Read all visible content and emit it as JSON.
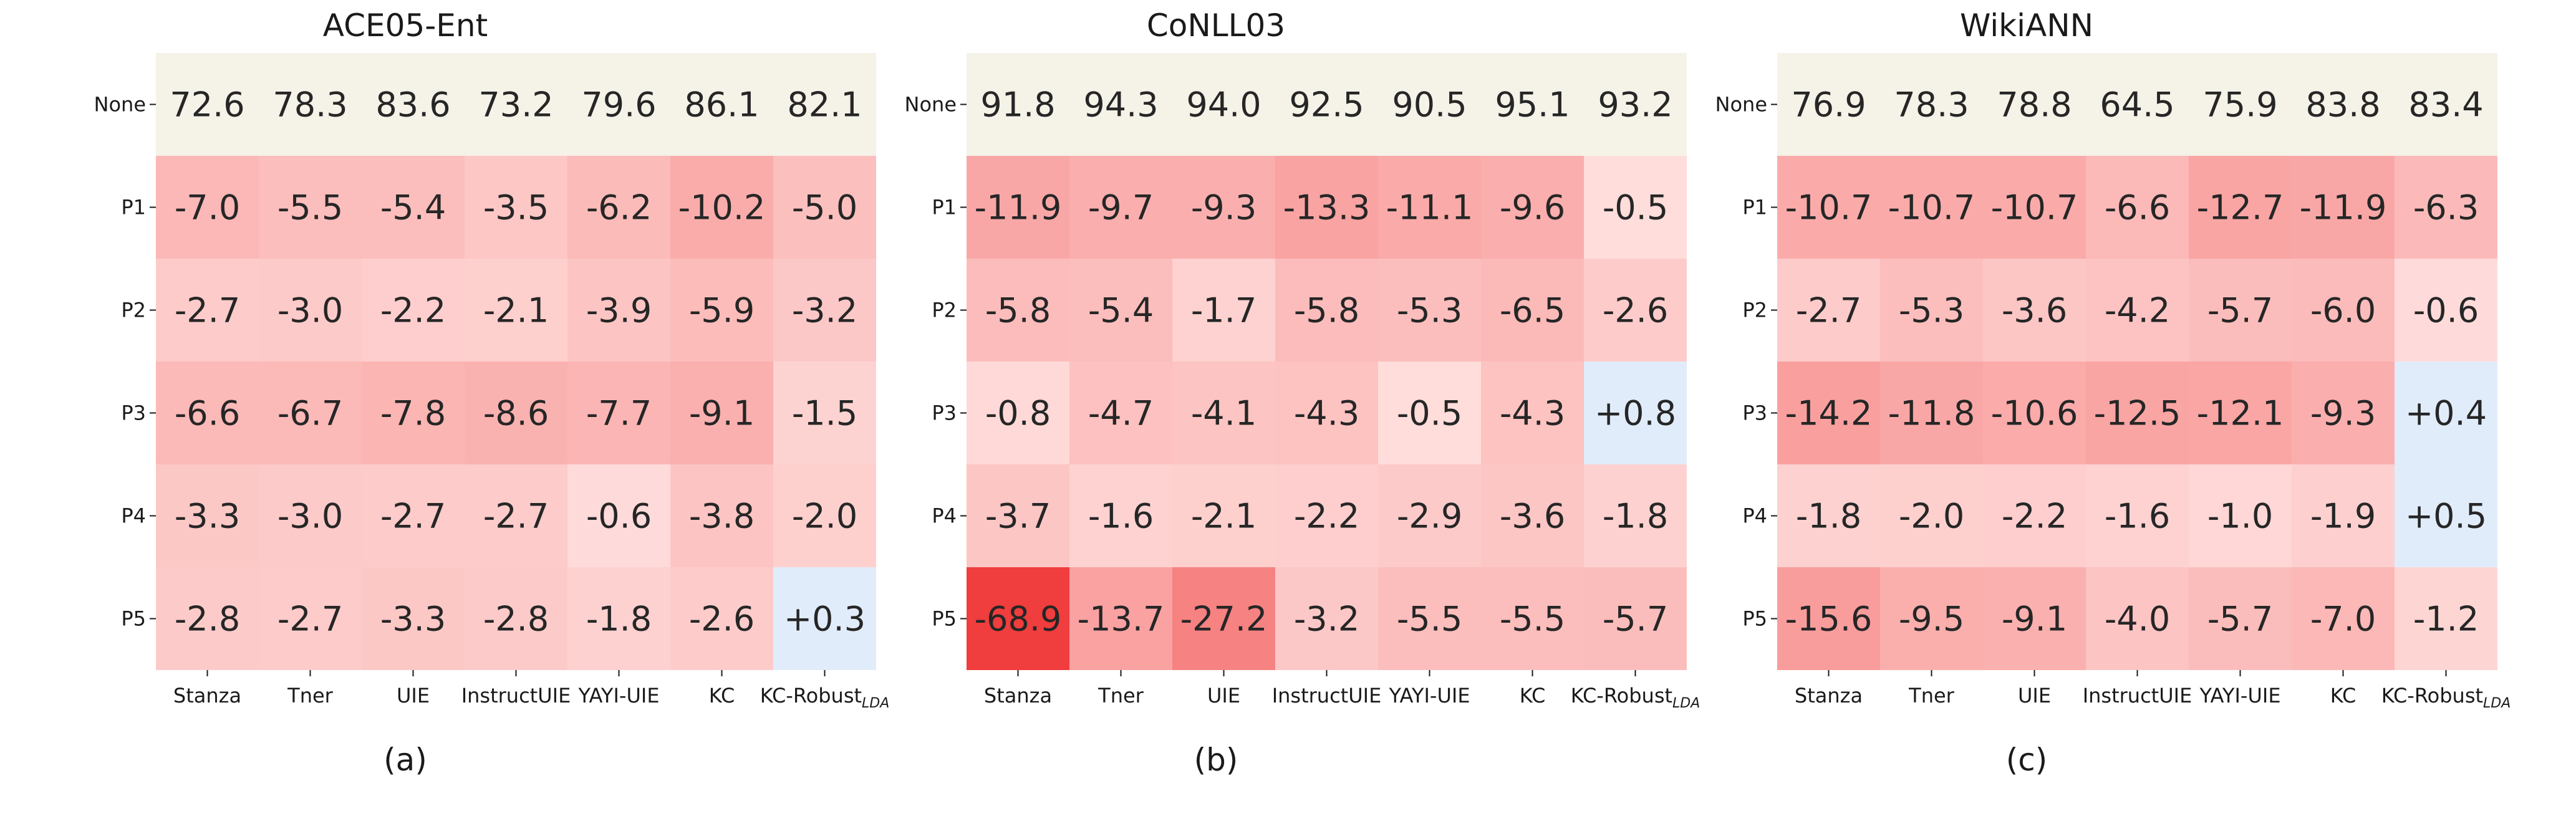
{
  "chart_data": [
    {
      "type": "heatmap",
      "title": "ACE05-Ent",
      "caption": "(a)",
      "rows": [
        "None",
        "P1",
        "P2",
        "P3",
        "P4",
        "P5"
      ],
      "columns": [
        {
          "main": "Stanza",
          "sub": ""
        },
        {
          "main": "Tner",
          "sub": ""
        },
        {
          "main": "UIE",
          "sub": ""
        },
        {
          "main": "InstructUIE",
          "sub": ""
        },
        {
          "main": "YAYI-UIE",
          "sub": ""
        },
        {
          "main": "KC",
          "sub": ""
        },
        {
          "main": "KC-Robust",
          "sub": "LDA"
        }
      ],
      "values": [
        [
          "72.6",
          "78.3",
          "83.6",
          "73.2",
          "79.6",
          "86.1",
          "82.1"
        ],
        [
          "-7.0",
          "-5.5",
          "-5.4",
          "-3.5",
          "-6.2",
          "-10.2",
          "-5.0"
        ],
        [
          "-2.7",
          "-3.0",
          "-2.2",
          "-2.1",
          "-3.9",
          "-5.9",
          "-3.2"
        ],
        [
          "-6.6",
          "-6.7",
          "-7.8",
          "-8.6",
          "-7.7",
          "-9.1",
          "-1.5"
        ],
        [
          "-3.3",
          "-3.0",
          "-2.7",
          "-2.7",
          "-0.6",
          "-3.8",
          "-2.0"
        ],
        [
          "-2.8",
          "-2.7",
          "-3.3",
          "-2.8",
          "-1.8",
          "-2.6",
          "+0.3"
        ]
      ]
    },
    {
      "type": "heatmap",
      "title": "CoNLL03",
      "caption": "(b)",
      "rows": [
        "None",
        "P1",
        "P2",
        "P3",
        "P4",
        "P5"
      ],
      "columns": [
        {
          "main": "Stanza",
          "sub": ""
        },
        {
          "main": "Tner",
          "sub": ""
        },
        {
          "main": "UIE",
          "sub": ""
        },
        {
          "main": "InstructUIE",
          "sub": ""
        },
        {
          "main": "YAYI-UIE",
          "sub": ""
        },
        {
          "main": "KC",
          "sub": ""
        },
        {
          "main": "KC-Robust",
          "sub": "LDA"
        }
      ],
      "values": [
        [
          "91.8",
          "94.3",
          "94.0",
          "92.5",
          "90.5",
          "95.1",
          "93.2"
        ],
        [
          "-11.9",
          "-9.7",
          "-9.3",
          "-13.3",
          "-11.1",
          "-9.6",
          "-0.5"
        ],
        [
          "-5.8",
          "-5.4",
          "-1.7",
          "-5.8",
          "-5.3",
          "-6.5",
          "-2.6"
        ],
        [
          "-0.8",
          "-4.7",
          "-4.1",
          "-4.3",
          "-0.5",
          "-4.3",
          "+0.8"
        ],
        [
          "-3.7",
          "-1.6",
          "-2.1",
          "-2.2",
          "-2.9",
          "-3.6",
          "-1.8"
        ],
        [
          "-68.9",
          "-13.7",
          "-27.2",
          "-3.2",
          "-5.5",
          "-5.5",
          "-5.7"
        ]
      ]
    },
    {
      "type": "heatmap",
      "title": "WikiANN",
      "caption": "(c)",
      "rows": [
        "None",
        "P1",
        "P2",
        "P3",
        "P4",
        "P5"
      ],
      "columns": [
        {
          "main": "Stanza",
          "sub": ""
        },
        {
          "main": "Tner",
          "sub": ""
        },
        {
          "main": "UIE",
          "sub": ""
        },
        {
          "main": "InstructUIE",
          "sub": ""
        },
        {
          "main": "YAYI-UIE",
          "sub": ""
        },
        {
          "main": "KC",
          "sub": ""
        },
        {
          "main": "KC-Robust",
          "sub": "LDA"
        }
      ],
      "values": [
        [
          "76.9",
          "78.3",
          "78.8",
          "64.5",
          "75.9",
          "83.8",
          "83.4"
        ],
        [
          "-10.7",
          "-10.7",
          "-10.7",
          "-6.6",
          "-12.7",
          "-11.9",
          "-6.3"
        ],
        [
          "-2.7",
          "-5.3",
          "-3.6",
          "-4.2",
          "-5.7",
          "-6.0",
          "-0.6"
        ],
        [
          "-14.2",
          "-11.8",
          "-10.6",
          "-12.5",
          "-12.1",
          "-9.3",
          "+0.4"
        ],
        [
          "-1.8",
          "-2.0",
          "-2.2",
          "-1.6",
          "-1.0",
          "-1.9",
          "+0.5"
        ],
        [
          "-15.6",
          "-9.5",
          "-9.1",
          "-4.0",
          "-5.7",
          "-7.0",
          "-1.2"
        ]
      ]
    }
  ],
  "colors": {
    "baseline_row": "#f5f2e8",
    "negative_max": "#f03c3c",
    "negative_min": "#ffe8e6",
    "positive": "#e1ecfb",
    "text": "#262626"
  }
}
